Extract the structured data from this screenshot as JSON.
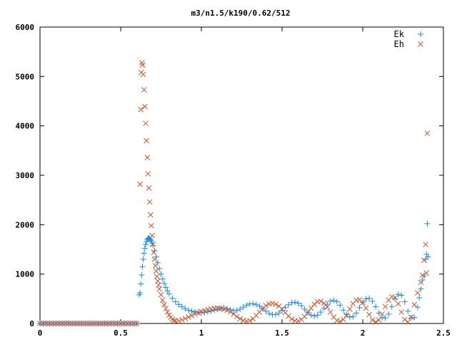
{
  "chart_data": {
    "type": "scatter",
    "title": "m3/n1.5/k190/0.62/512",
    "xlabel": "",
    "ylabel": "",
    "xlim": [
      0,
      2.5
    ],
    "ylim": [
      0,
      6000
    ],
    "x_ticks": [
      "0",
      "0.5",
      "1",
      "1.5",
      "2",
      "2.5"
    ],
    "y_ticks": [
      "0",
      "1000",
      "2000",
      "3000",
      "4000",
      "5000",
      "6000"
    ],
    "grid": false,
    "legend_position": "top-right",
    "series": [
      {
        "name": "Ek",
        "marker": "plus",
        "color": "#1c8ae8",
        "points": [
          [
            0.0,
            0
          ],
          [
            0.02,
            0
          ],
          [
            0.04,
            0
          ],
          [
            0.06,
            0
          ],
          [
            0.08,
            0
          ],
          [
            0.1,
            0
          ],
          [
            0.12,
            0
          ],
          [
            0.14,
            0
          ],
          [
            0.16,
            0
          ],
          [
            0.18,
            0
          ],
          [
            0.2,
            0
          ],
          [
            0.22,
            0
          ],
          [
            0.24,
            0
          ],
          [
            0.26,
            0
          ],
          [
            0.28,
            0
          ],
          [
            0.3,
            0
          ],
          [
            0.32,
            0
          ],
          [
            0.34,
            0
          ],
          [
            0.36,
            0
          ],
          [
            0.38,
            0
          ],
          [
            0.4,
            0
          ],
          [
            0.42,
            0
          ],
          [
            0.44,
            0
          ],
          [
            0.46,
            0
          ],
          [
            0.48,
            0
          ],
          [
            0.5,
            0
          ],
          [
            0.52,
            0
          ],
          [
            0.54,
            0
          ],
          [
            0.56,
            0
          ],
          [
            0.58,
            0
          ],
          [
            0.6,
            0
          ],
          [
            0.615,
            580
          ],
          [
            0.62,
            620
          ],
          [
            0.625,
            800
          ],
          [
            0.63,
            980
          ],
          [
            0.635,
            1150
          ],
          [
            0.64,
            1300
          ],
          [
            0.645,
            1420
          ],
          [
            0.65,
            1520
          ],
          [
            0.655,
            1600
          ],
          [
            0.66,
            1660
          ],
          [
            0.665,
            1700
          ],
          [
            0.67,
            1720
          ],
          [
            0.675,
            1730
          ],
          [
            0.68,
            1720
          ],
          [
            0.685,
            1700
          ],
          [
            0.69,
            1670
          ],
          [
            0.695,
            1630
          ],
          [
            0.7,
            1580
          ],
          [
            0.71,
            1470
          ],
          [
            0.72,
            1350
          ],
          [
            0.73,
            1230
          ],
          [
            0.74,
            1110
          ],
          [
            0.75,
            1000
          ],
          [
            0.76,
            900
          ],
          [
            0.77,
            810
          ],
          [
            0.78,
            730
          ],
          [
            0.79,
            660
          ],
          [
            0.8,
            600
          ],
          [
            0.82,
            510
          ],
          [
            0.84,
            440
          ],
          [
            0.86,
            385
          ],
          [
            0.88,
            340
          ],
          [
            0.9,
            300
          ],
          [
            0.92,
            270
          ],
          [
            0.94,
            250
          ],
          [
            0.96,
            235
          ],
          [
            0.98,
            225
          ],
          [
            1.0,
            222
          ],
          [
            1.02,
            225
          ],
          [
            1.04,
            235
          ],
          [
            1.06,
            250
          ],
          [
            1.08,
            270
          ],
          [
            1.1,
            290
          ],
          [
            1.12,
            305
          ],
          [
            1.14,
            310
          ],
          [
            1.16,
            300
          ],
          [
            1.18,
            280
          ],
          [
            1.2,
            260
          ],
          [
            1.22,
            265
          ],
          [
            1.24,
            290
          ],
          [
            1.26,
            330
          ],
          [
            1.28,
            370
          ],
          [
            1.3,
            395
          ],
          [
            1.32,
            400
          ],
          [
            1.34,
            385
          ],
          [
            1.36,
            350
          ],
          [
            1.38,
            300
          ],
          [
            1.4,
            250
          ],
          [
            1.42,
            205
          ],
          [
            1.44,
            180
          ],
          [
            1.46,
            180
          ],
          [
            1.48,
            210
          ],
          [
            1.5,
            260
          ],
          [
            1.52,
            320
          ],
          [
            1.54,
            380
          ],
          [
            1.56,
            420
          ],
          [
            1.58,
            430
          ],
          [
            1.6,
            410
          ],
          [
            1.62,
            360
          ],
          [
            1.64,
            290
          ],
          [
            1.66,
            220
          ],
          [
            1.68,
            170
          ],
          [
            1.7,
            150
          ],
          [
            1.72,
            170
          ],
          [
            1.74,
            230
          ],
          [
            1.76,
            310
          ],
          [
            1.78,
            390
          ],
          [
            1.8,
            450
          ],
          [
            1.82,
            470
          ],
          [
            1.84,
            440
          ],
          [
            1.86,
            370
          ],
          [
            1.88,
            270
          ],
          [
            1.9,
            180
          ],
          [
            1.92,
            130
          ],
          [
            1.94,
            140
          ],
          [
            1.96,
            210
          ],
          [
            1.98,
            320
          ],
          [
            2.0,
            430
          ],
          [
            2.02,
            500
          ],
          [
            2.04,
            510
          ],
          [
            2.06,
            450
          ],
          [
            2.08,
            340
          ],
          [
            2.1,
            210
          ],
          [
            2.12,
            120
          ],
          [
            2.14,
            110
          ],
          [
            2.16,
            190
          ],
          [
            2.18,
            340
          ],
          [
            2.2,
            500
          ],
          [
            2.22,
            590
          ],
          [
            2.24,
            570
          ],
          [
            2.26,
            440
          ],
          [
            2.28,
            250
          ],
          [
            2.3,
            110
          ],
          [
            2.32,
            120
          ],
          [
            2.34,
            330
          ],
          [
            2.35,
            520
          ],
          [
            2.36,
            700
          ],
          [
            2.37,
            880
          ],
          [
            2.38,
            960
          ],
          [
            2.39,
            1300
          ],
          [
            2.395,
            1400
          ],
          [
            2.4,
            2020
          ],
          [
            2.405,
            1350
          ]
        ]
      },
      {
        "name": "Eh",
        "marker": "cross",
        "color": "#c8562a",
        "points": [
          [
            0.0,
            0
          ],
          [
            0.02,
            0
          ],
          [
            0.04,
            0
          ],
          [
            0.06,
            0
          ],
          [
            0.08,
            0
          ],
          [
            0.1,
            0
          ],
          [
            0.12,
            0
          ],
          [
            0.14,
            0
          ],
          [
            0.16,
            0
          ],
          [
            0.18,
            0
          ],
          [
            0.2,
            0
          ],
          [
            0.22,
            0
          ],
          [
            0.24,
            0
          ],
          [
            0.26,
            0
          ],
          [
            0.28,
            0
          ],
          [
            0.3,
            0
          ],
          [
            0.32,
            0
          ],
          [
            0.34,
            0
          ],
          [
            0.36,
            0
          ],
          [
            0.38,
            0
          ],
          [
            0.4,
            0
          ],
          [
            0.42,
            0
          ],
          [
            0.44,
            0
          ],
          [
            0.46,
            0
          ],
          [
            0.48,
            0
          ],
          [
            0.5,
            0
          ],
          [
            0.52,
            0
          ],
          [
            0.54,
            0
          ],
          [
            0.56,
            0
          ],
          [
            0.58,
            0
          ],
          [
            0.6,
            0
          ],
          [
            0.62,
            2820
          ],
          [
            0.625,
            4330
          ],
          [
            0.628,
            5080
          ],
          [
            0.632,
            5280
          ],
          [
            0.636,
            5230
          ],
          [
            0.64,
            5040
          ],
          [
            0.645,
            4730
          ],
          [
            0.65,
            4390
          ],
          [
            0.655,
            4050
          ],
          [
            0.66,
            3700
          ],
          [
            0.665,
            3360
          ],
          [
            0.67,
            3030
          ],
          [
            0.675,
            2740
          ],
          [
            0.68,
            2460
          ],
          [
            0.685,
            2200
          ],
          [
            0.69,
            1980
          ],
          [
            0.695,
            1780
          ],
          [
            0.7,
            1600
          ],
          [
            0.705,
            1440
          ],
          [
            0.71,
            1300
          ],
          [
            0.715,
            1170
          ],
          [
            0.72,
            1060
          ],
          [
            0.725,
            950
          ],
          [
            0.73,
            860
          ],
          [
            0.735,
            780
          ],
          [
            0.74,
            700
          ],
          [
            0.75,
            580
          ],
          [
            0.76,
            470
          ],
          [
            0.77,
            380
          ],
          [
            0.78,
            300
          ],
          [
            0.79,
            230
          ],
          [
            0.8,
            170
          ],
          [
            0.81,
            120
          ],
          [
            0.82,
            85
          ],
          [
            0.83,
            60
          ],
          [
            0.84,
            50
          ],
          [
            0.86,
            55
          ],
          [
            0.88,
            75
          ],
          [
            0.9,
            100
          ],
          [
            0.92,
            130
          ],
          [
            0.94,
            160
          ],
          [
            0.96,
            190
          ],
          [
            0.98,
            215
          ],
          [
            1.0,
            240
          ],
          [
            1.02,
            260
          ],
          [
            1.04,
            280
          ],
          [
            1.06,
            295
          ],
          [
            1.08,
            305
          ],
          [
            1.1,
            310
          ],
          [
            1.12,
            305
          ],
          [
            1.14,
            290
          ],
          [
            1.16,
            265
          ],
          [
            1.18,
            235
          ],
          [
            1.2,
            190
          ],
          [
            1.22,
            140
          ],
          [
            1.24,
            95
          ],
          [
            1.26,
            60
          ],
          [
            1.28,
            45
          ],
          [
            1.3,
            55
          ],
          [
            1.32,
            95
          ],
          [
            1.34,
            160
          ],
          [
            1.36,
            230
          ],
          [
            1.38,
            300
          ],
          [
            1.4,
            360
          ],
          [
            1.42,
            395
          ],
          [
            1.44,
            405
          ],
          [
            1.46,
            390
          ],
          [
            1.48,
            350
          ],
          [
            1.5,
            290
          ],
          [
            1.52,
            220
          ],
          [
            1.54,
            150
          ],
          [
            1.56,
            90
          ],
          [
            1.58,
            55
          ],
          [
            1.6,
            50
          ],
          [
            1.62,
            80
          ],
          [
            1.64,
            140
          ],
          [
            1.66,
            220
          ],
          [
            1.68,
            310
          ],
          [
            1.7,
            390
          ],
          [
            1.72,
            440
          ],
          [
            1.74,
            450
          ],
          [
            1.76,
            410
          ],
          [
            1.78,
            330
          ],
          [
            1.8,
            230
          ],
          [
            1.82,
            130
          ],
          [
            1.84,
            60
          ],
          [
            1.86,
            40
          ],
          [
            1.88,
            80
          ],
          [
            1.9,
            170
          ],
          [
            1.92,
            290
          ],
          [
            1.94,
            400
          ],
          [
            1.96,
            470
          ],
          [
            1.98,
            480
          ],
          [
            2.0,
            420
          ],
          [
            2.02,
            310
          ],
          [
            2.04,
            180
          ],
          [
            2.06,
            70
          ],
          [
            2.08,
            30
          ],
          [
            2.1,
            70
          ],
          [
            2.12,
            190
          ],
          [
            2.14,
            340
          ],
          [
            2.16,
            470
          ],
          [
            2.18,
            540
          ],
          [
            2.2,
            520
          ],
          [
            2.22,
            400
          ],
          [
            2.24,
            230
          ],
          [
            2.26,
            80
          ],
          [
            2.28,
            30
          ],
          [
            2.3,
            130
          ],
          [
            2.32,
            380
          ],
          [
            2.34,
            620
          ],
          [
            2.36,
            830
          ],
          [
            2.37,
            980
          ],
          [
            2.38,
            1280
          ],
          [
            2.39,
            1600
          ],
          [
            2.395,
            1020
          ],
          [
            2.4,
            3850
          ]
        ]
      }
    ]
  }
}
